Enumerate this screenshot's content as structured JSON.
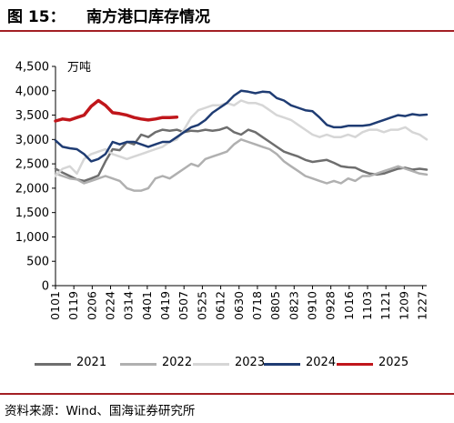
{
  "figure": {
    "number": "图 15：",
    "title": "南方港口库存情况",
    "source": "资料来源：Wind、国海证券研究所"
  },
  "chart_data": {
    "type": "line",
    "unit_label": "万吨",
    "ylim": [
      0,
      4500
    ],
    "y_ticks": [
      "0",
      "500",
      "1,000",
      "1,500",
      "2,000",
      "2,500",
      "3,000",
      "3,500",
      "4,000",
      "4,500"
    ],
    "x_tick_labels": [
      "0101",
      "0119",
      "0206",
      "0224",
      "0314",
      "0401",
      "0419",
      "0507",
      "0525",
      "0612",
      "0630",
      "0718",
      "0805",
      "0823",
      "0910",
      "0928",
      "1016",
      "1103",
      "1121",
      "1209",
      "1227"
    ],
    "grid": false,
    "legend_position": "bottom",
    "series": [
      {
        "name": "2021",
        "color": "#6e6e6e",
        "x": [
          "0101",
          "0108",
          "0115",
          "0122",
          "0129",
          "0205",
          "0212",
          "0219",
          "0226",
          "0305",
          "0312",
          "0319",
          "0326",
          "0402",
          "0409",
          "0416",
          "0423",
          "0430",
          "0507",
          "0514",
          "0521",
          "0528",
          "0604",
          "0611",
          "0618",
          "0625",
          "0702",
          "0709",
          "0716",
          "0723",
          "0730",
          "0806",
          "0813",
          "0820",
          "0827",
          "0903",
          "0910",
          "0917",
          "0924",
          "1001",
          "1008",
          "1015",
          "1022",
          "1029",
          "1105",
          "1112",
          "1119",
          "1126",
          "1203",
          "1210",
          "1217",
          "1224",
          "1231"
        ],
        "values": [
          2400,
          2320,
          2250,
          2180,
          2150,
          2200,
          2260,
          2550,
          2800,
          2780,
          2950,
          2900,
          3100,
          3050,
          3150,
          3200,
          3180,
          3200,
          3150,
          3180,
          3170,
          3200,
          3180,
          3200,
          3250,
          3150,
          3100,
          3200,
          3150,
          3050,
          2950,
          2850,
          2750,
          2700,
          2650,
          2580,
          2540,
          2560,
          2580,
          2520,
          2450,
          2430,
          2420,
          2350,
          2300,
          2280,
          2300,
          2350,
          2400,
          2420,
          2380,
          2400,
          2380
        ]
      },
      {
        "name": "2022",
        "color": "#b0b0b0",
        "x": [
          "0101",
          "0108",
          "0115",
          "0122",
          "0129",
          "0205",
          "0212",
          "0219",
          "0226",
          "0305",
          "0312",
          "0319",
          "0326",
          "0402",
          "0409",
          "0416",
          "0423",
          "0430",
          "0507",
          "0514",
          "0521",
          "0528",
          "0604",
          "0611",
          "0618",
          "0625",
          "0702",
          "0709",
          "0716",
          "0723",
          "0730",
          "0806",
          "0813",
          "0820",
          "0827",
          "0903",
          "0910",
          "0917",
          "0924",
          "1001",
          "1008",
          "1015",
          "1022",
          "1029",
          "1105",
          "1112",
          "1119",
          "1126",
          "1203",
          "1210",
          "1217",
          "1224",
          "1231"
        ],
        "values": [
          2300,
          2250,
          2200,
          2180,
          2100,
          2150,
          2200,
          2250,
          2200,
          2150,
          2000,
          1950,
          1950,
          2000,
          2200,
          2250,
          2200,
          2300,
          2400,
          2500,
          2450,
          2600,
          2650,
          2700,
          2750,
          2900,
          3000,
          2950,
          2900,
          2850,
          2800,
          2700,
          2550,
          2450,
          2350,
          2250,
          2200,
          2150,
          2100,
          2150,
          2100,
          2200,
          2150,
          2250,
          2250,
          2300,
          2350,
          2400,
          2450,
          2400,
          2350,
          2300,
          2280
        ]
      },
      {
        "name": "2023",
        "color": "#d6d6d6",
        "x": [
          "0101",
          "0108",
          "0115",
          "0122",
          "0129",
          "0205",
          "0212",
          "0219",
          "0226",
          "0305",
          "0312",
          "0319",
          "0326",
          "0402",
          "0409",
          "0416",
          "0423",
          "0430",
          "0507",
          "0514",
          "0521",
          "0528",
          "0604",
          "0611",
          "0618",
          "0625",
          "0702",
          "0709",
          "0716",
          "0723",
          "0730",
          "0806",
          "0813",
          "0820",
          "0827",
          "0903",
          "0910",
          "0917",
          "0924",
          "1001",
          "1008",
          "1015",
          "1022",
          "1029",
          "1105",
          "1112",
          "1119",
          "1126",
          "1203",
          "1210",
          "1217",
          "1224",
          "1231"
        ],
        "values": [
          2250,
          2400,
          2450,
          2300,
          2600,
          2700,
          2750,
          2800,
          2700,
          2650,
          2600,
          2650,
          2700,
          2750,
          2800,
          2850,
          2950,
          3000,
          3200,
          3450,
          3600,
          3650,
          3700,
          3700,
          3750,
          3700,
          3800,
          3750,
          3750,
          3700,
          3600,
          3500,
          3450,
          3400,
          3300,
          3200,
          3100,
          3050,
          3100,
          3050,
          3050,
          3100,
          3050,
          3150,
          3200,
          3200,
          3150,
          3200,
          3200,
          3250,
          3150,
          3100,
          3000
        ]
      },
      {
        "name": "2024",
        "color": "#1f3c73",
        "x": [
          "0101",
          "0108",
          "0115",
          "0122",
          "0129",
          "0205",
          "0212",
          "0219",
          "0226",
          "0305",
          "0312",
          "0319",
          "0326",
          "0402",
          "0409",
          "0416",
          "0423",
          "0430",
          "0507",
          "0514",
          "0521",
          "0528",
          "0604",
          "0611",
          "0618",
          "0625",
          "0702",
          "0709",
          "0716",
          "0723",
          "0730",
          "0806",
          "0813",
          "0820",
          "0827",
          "0903",
          "0910",
          "0917",
          "0924",
          "1001",
          "1008",
          "1015",
          "1022",
          "1029",
          "1105",
          "1112",
          "1119",
          "1126",
          "1203",
          "1210",
          "1217",
          "1224",
          "1231"
        ],
        "values": [
          2980,
          2850,
          2820,
          2800,
          2700,
          2550,
          2600,
          2700,
          2950,
          2900,
          2950,
          2950,
          2900,
          2850,
          2900,
          2950,
          2950,
          3050,
          3150,
          3250,
          3300,
          3400,
          3550,
          3650,
          3750,
          3900,
          4000,
          3980,
          3950,
          3980,
          3970,
          3850,
          3800,
          3700,
          3650,
          3600,
          3580,
          3450,
          3300,
          3250,
          3250,
          3280,
          3280,
          3280,
          3300,
          3350,
          3400,
          3450,
          3500,
          3480,
          3520,
          3500,
          3510
        ]
      },
      {
        "name": "2025",
        "color": "#c0161b",
        "x": [
          "0101",
          "0108",
          "0115",
          "0122",
          "0129",
          "0205",
          "0212",
          "0219",
          "0226",
          "0305",
          "0312",
          "0319",
          "0326",
          "0402",
          "0409",
          "0416",
          "0423",
          "0430"
        ],
        "values": [
          3380,
          3420,
          3400,
          3450,
          3500,
          3680,
          3800,
          3700,
          3550,
          3530,
          3500,
          3450,
          3420,
          3400,
          3420,
          3450,
          3450,
          3460
        ]
      }
    ]
  }
}
